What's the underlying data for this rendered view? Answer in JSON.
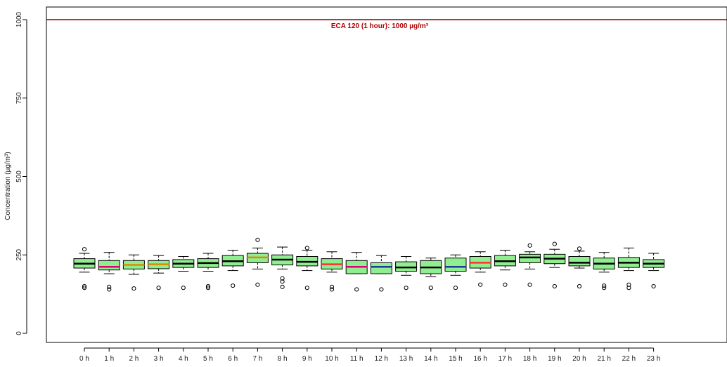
{
  "chart_data": {
    "type": "box",
    "title": "",
    "ylabel": "Concentration (µg/m³)",
    "xlabel": "",
    "ylim": [
      0,
      1100
    ],
    "yticks": [
      0,
      250,
      500,
      750,
      1000
    ],
    "ytick_labels": [
      "0",
      "250",
      "500",
      "750",
      "1000"
    ],
    "reference_line": {
      "value": 1000,
      "label": "ECA 120 (1 hour): 1000 µg/m³",
      "color": "#8b0000"
    },
    "box_fill_color": "#90ee90",
    "categories": [
      "0 h",
      "1 h",
      "2 h",
      "3 h",
      "4 h",
      "5 h",
      "6 h",
      "7 h",
      "8 h",
      "9 h",
      "10 h",
      "11 h",
      "12 h",
      "13 h",
      "14 h",
      "15 h",
      "16 h",
      "17 h",
      "18 h",
      "19 h",
      "20 h",
      "21 h",
      "22 h",
      "23 h"
    ],
    "boxes": [
      {
        "min": 195,
        "q1": 208,
        "median": 222,
        "q3": 238,
        "max": 255,
        "median_color": "#000000",
        "outliers": [
          268,
          150,
          145
        ]
      },
      {
        "min": 190,
        "q1": 202,
        "median": 212,
        "q3": 232,
        "max": 258,
        "median_color": "#e0007a",
        "outliers": [
          148,
          140
        ]
      },
      {
        "min": 188,
        "q1": 205,
        "median": 218,
        "q3": 232,
        "max": 250,
        "median_color": "#e08a00",
        "outliers": [
          143
        ]
      },
      {
        "min": 192,
        "q1": 206,
        "median": 220,
        "q3": 232,
        "max": 248,
        "median_color": "#e08a00",
        "outliers": [
          145
        ]
      },
      {
        "min": 198,
        "q1": 210,
        "median": 222,
        "q3": 235,
        "max": 245,
        "median_color": "#000000",
        "outliers": [
          145
        ]
      },
      {
        "min": 198,
        "q1": 210,
        "median": 224,
        "q3": 238,
        "max": 255,
        "median_color": "#000000",
        "outliers": [
          150,
          145
        ]
      },
      {
        "min": 200,
        "q1": 215,
        "median": 230,
        "q3": 248,
        "max": 265,
        "median_color": "#000000",
        "outliers": [
          152
        ]
      },
      {
        "min": 205,
        "q1": 225,
        "median": 242,
        "q3": 255,
        "max": 272,
        "median_color": "#e08a00",
        "outliers": [
          298,
          155
        ]
      },
      {
        "min": 205,
        "q1": 218,
        "median": 235,
        "q3": 250,
        "max": 275,
        "median_color": "#000000",
        "outliers": [
          175,
          165,
          148
        ]
      },
      {
        "min": 200,
        "q1": 215,
        "median": 228,
        "q3": 245,
        "max": 265,
        "median_color": "#000000",
        "outliers": [
          272,
          145
        ]
      },
      {
        "min": 195,
        "q1": 205,
        "median": 220,
        "q3": 238,
        "max": 260,
        "median_color": "#ff3030",
        "outliers": [
          148,
          140
        ]
      },
      {
        "min": 190,
        "q1": 190,
        "median": 212,
        "q3": 232,
        "max": 258,
        "median_color": "#e0007a",
        "outliers": [
          140
        ]
      },
      {
        "min": 190,
        "q1": 190,
        "median": 212,
        "q3": 225,
        "max": 248,
        "median_color": "#1e3a9a",
        "outliers": [
          140
        ]
      },
      {
        "min": 185,
        "q1": 198,
        "median": 210,
        "q3": 228,
        "max": 245,
        "median_color": "#000000",
        "outliers": [
          145
        ]
      },
      {
        "min": 180,
        "q1": 190,
        "median": 210,
        "q3": 232,
        "max": 240,
        "median_color": "#000000",
        "outliers": [
          145
        ]
      },
      {
        "min": 185,
        "q1": 198,
        "median": 212,
        "q3": 240,
        "max": 250,
        "median_color": "#1e3a9a",
        "outliers": [
          145
        ]
      },
      {
        "min": 195,
        "q1": 208,
        "median": 225,
        "q3": 245,
        "max": 260,
        "median_color": "#ff3030",
        "outliers": [
          155
        ]
      },
      {
        "min": 202,
        "q1": 215,
        "median": 230,
        "q3": 248,
        "max": 265,
        "median_color": "#000000",
        "outliers": [
          155
        ]
      },
      {
        "min": 205,
        "q1": 225,
        "median": 242,
        "q3": 252,
        "max": 260,
        "median_color": "#000000",
        "outliers": [
          280,
          155
        ]
      },
      {
        "min": 210,
        "q1": 222,
        "median": 238,
        "q3": 252,
        "max": 268,
        "median_color": "#000000",
        "outliers": [
          285,
          150
        ]
      },
      {
        "min": 208,
        "q1": 215,
        "median": 225,
        "q3": 245,
        "max": 262,
        "median_color": "#000000",
        "outliers": [
          270,
          150
        ]
      },
      {
        "min": 195,
        "q1": 205,
        "median": 222,
        "q3": 240,
        "max": 258,
        "median_color": "#000000",
        "outliers": [
          152,
          145
        ]
      },
      {
        "min": 200,
        "q1": 210,
        "median": 225,
        "q3": 242,
        "max": 272,
        "median_color": "#000000",
        "outliers": [
          155,
          145
        ]
      },
      {
        "min": 200,
        "q1": 210,
        "median": 222,
        "q3": 235,
        "max": 255,
        "median_color": "#000000",
        "outliers": [
          150
        ]
      }
    ]
  }
}
